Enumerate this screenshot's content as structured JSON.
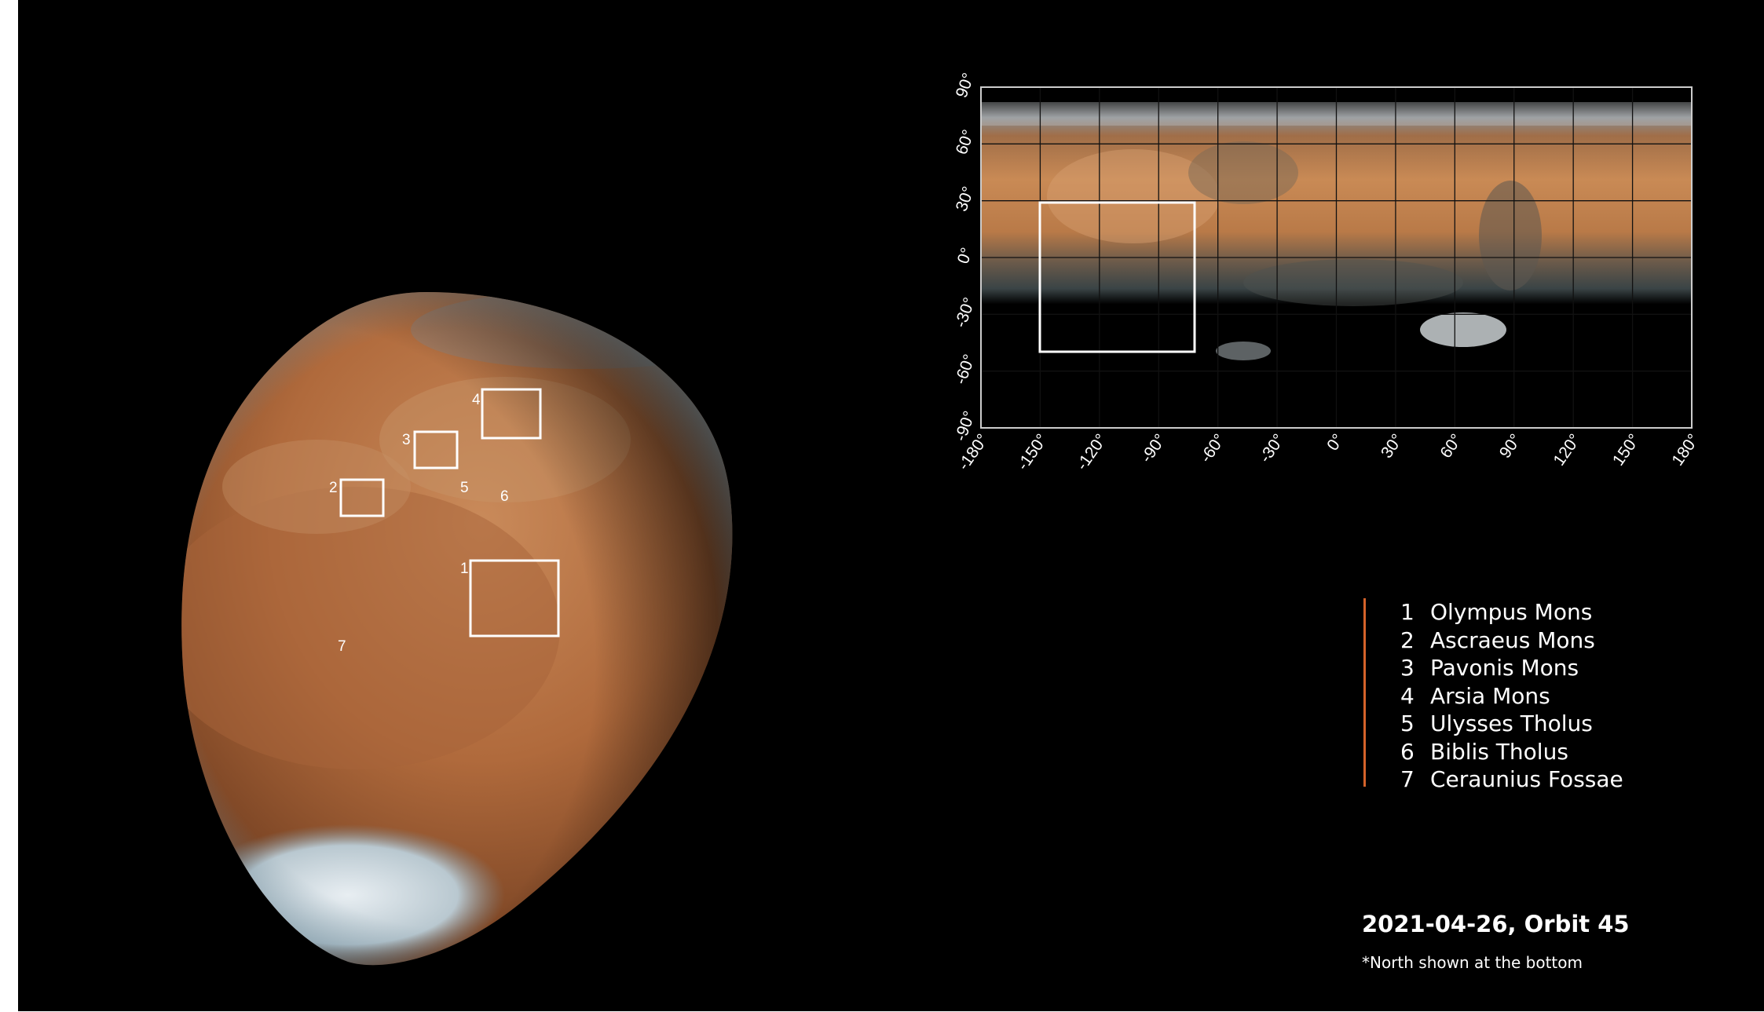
{
  "colors": {
    "background": "#000000",
    "mars_surface": "#b06a3c",
    "accent_line": "#d4622a",
    "text": "#ffffff"
  },
  "globe": {
    "markers": [
      {
        "number": "1",
        "label": "1"
      },
      {
        "number": "2",
        "label": "2"
      },
      {
        "number": "3",
        "label": "3"
      },
      {
        "number": "4",
        "label": "4"
      },
      {
        "number": "5",
        "label": "5"
      },
      {
        "number": "6",
        "label": "6"
      },
      {
        "number": "7",
        "label": "7"
      }
    ]
  },
  "map": {
    "lat_ticks": [
      "90°",
      "60°",
      "30°",
      "0°",
      "-30°",
      "-60°",
      "-90°"
    ],
    "lon_ticks": [
      "-180°",
      "-150°",
      "-120°",
      "-90°",
      "-60°",
      "-30°",
      "0°",
      "30°",
      "60°",
      "90°",
      "120°",
      "150°",
      "180°"
    ]
  },
  "legend": {
    "items": [
      {
        "number": "1",
        "name": "Olympus Mons"
      },
      {
        "number": "2",
        "name": "Ascraeus Mons"
      },
      {
        "number": "3",
        "name": "Pavonis Mons"
      },
      {
        "number": "4",
        "name": "Arsia Mons"
      },
      {
        "number": "5",
        "name": "Ulysses Tholus"
      },
      {
        "number": "6",
        "name": "Biblis Tholus"
      },
      {
        "number": "7",
        "name": "Ceraunius Fossae"
      }
    ]
  },
  "caption": {
    "date_orbit": "2021-04-26, Orbit 45",
    "note": "*North shown at the bottom"
  }
}
